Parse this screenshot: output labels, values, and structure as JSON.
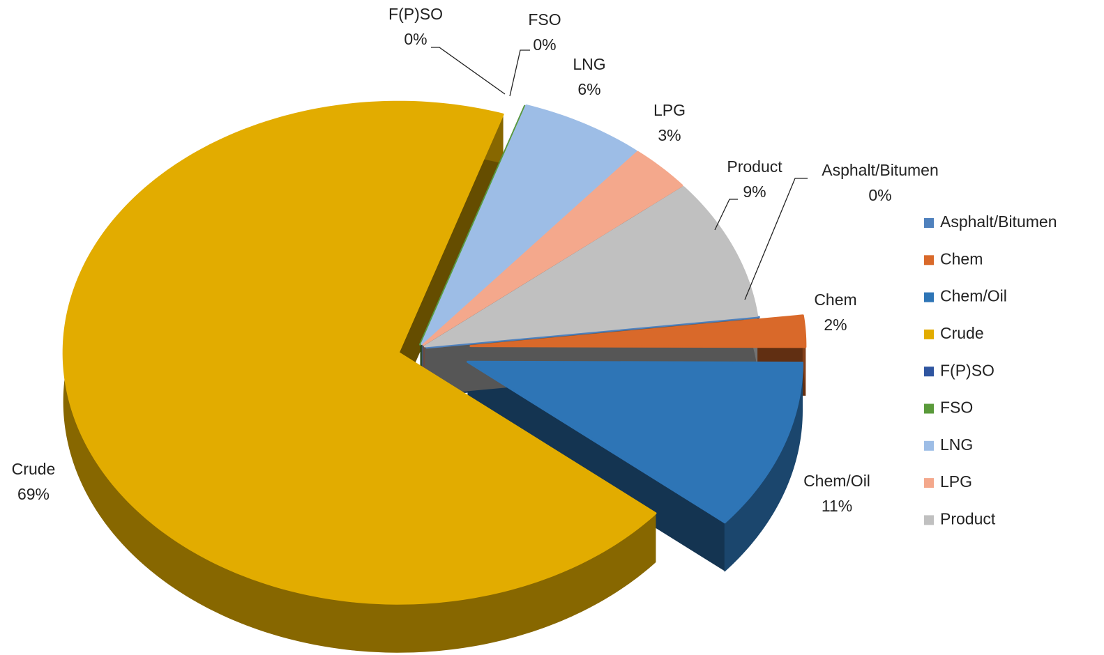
{
  "chart_data": {
    "type": "pie",
    "categories": [
      "Asphalt/Bitumen",
      "Chem",
      "Chem/Oil",
      "Crude",
      "F(P)SO",
      "FSO",
      "LNG",
      "LPG",
      "Product"
    ],
    "values": [
      0,
      2,
      11,
      69,
      0,
      0,
      6,
      3,
      9
    ],
    "value_labels": [
      "0%",
      "2%",
      "11%",
      "69%",
      "0%",
      "0%",
      "6%",
      "3%",
      "9%"
    ],
    "colors": [
      "#4f81bd",
      "#d9692a",
      "#2e75b6",
      "#e2ac00",
      "#2f55a0",
      "#5a9a3a",
      "#9dbde6",
      "#f4a88c",
      "#c0c0c0"
    ],
    "legend": "right"
  }
}
